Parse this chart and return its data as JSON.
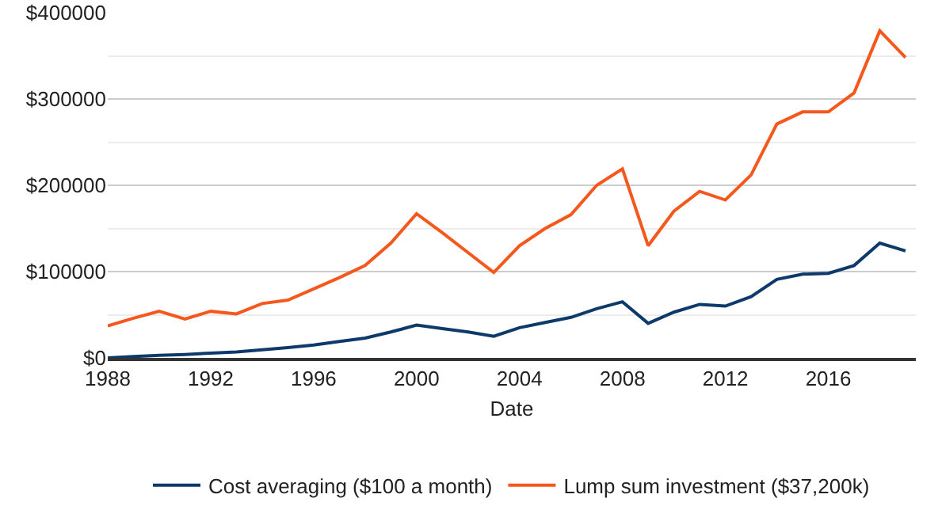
{
  "chart_data": {
    "type": "line",
    "xlabel": "Date",
    "x": [
      1988,
      1989,
      1990,
      1991,
      1992,
      1993,
      1994,
      1995,
      1996,
      1997,
      1998,
      1999,
      2000,
      2001,
      2002,
      2003,
      2004,
      2005,
      2006,
      2007,
      2008,
      2009,
      2010,
      2011,
      2012,
      2013,
      2014,
      2015,
      2016,
      2017,
      2018,
      2019
    ],
    "series": [
      {
        "name": "Cost averaging ($100 a month)",
        "color": "#0e3a6b",
        "values": [
          0,
          1500,
          3000,
          4000,
          5500,
          7000,
          9500,
          12000,
          15000,
          19000,
          23000,
          30000,
          38000,
          34000,
          30000,
          25000,
          35000,
          41000,
          47000,
          57000,
          65000,
          40000,
          53000,
          62000,
          60000,
          71000,
          91000,
          97000,
          98000,
          107000,
          133000,
          124000
        ]
      },
      {
        "name": "Lump sum investment ($37,200k)",
        "color": "#f4581c",
        "values": [
          37000,
          46000,
          54000,
          45000,
          54000,
          51000,
          63000,
          67000,
          80000,
          93000,
          107000,
          133000,
          167000,
          145000,
          122000,
          99000,
          130000,
          150000,
          166000,
          200000,
          219000,
          130000,
          170000,
          193000,
          183000,
          212000,
          271000,
          285000,
          285000,
          307000,
          379000,
          348000
        ]
      }
    ],
    "xlim": [
      1988,
      2019.4
    ],
    "xticks": [
      1988,
      1992,
      1996,
      2000,
      2004,
      2008,
      2012,
      2016
    ],
    "ylim": [
      0,
      400000
    ],
    "yticks": [
      {
        "value": 0,
        "label": "$0"
      },
      {
        "value": 100000,
        "label": "$100000"
      },
      {
        "value": 200000,
        "label": "$200000"
      },
      {
        "value": 300000,
        "label": "$300000"
      },
      {
        "value": 400000,
        "label": "$400000"
      }
    ],
    "grid": "y",
    "legend": "bottom",
    "marker": "none",
    "line_style": "solid"
  }
}
